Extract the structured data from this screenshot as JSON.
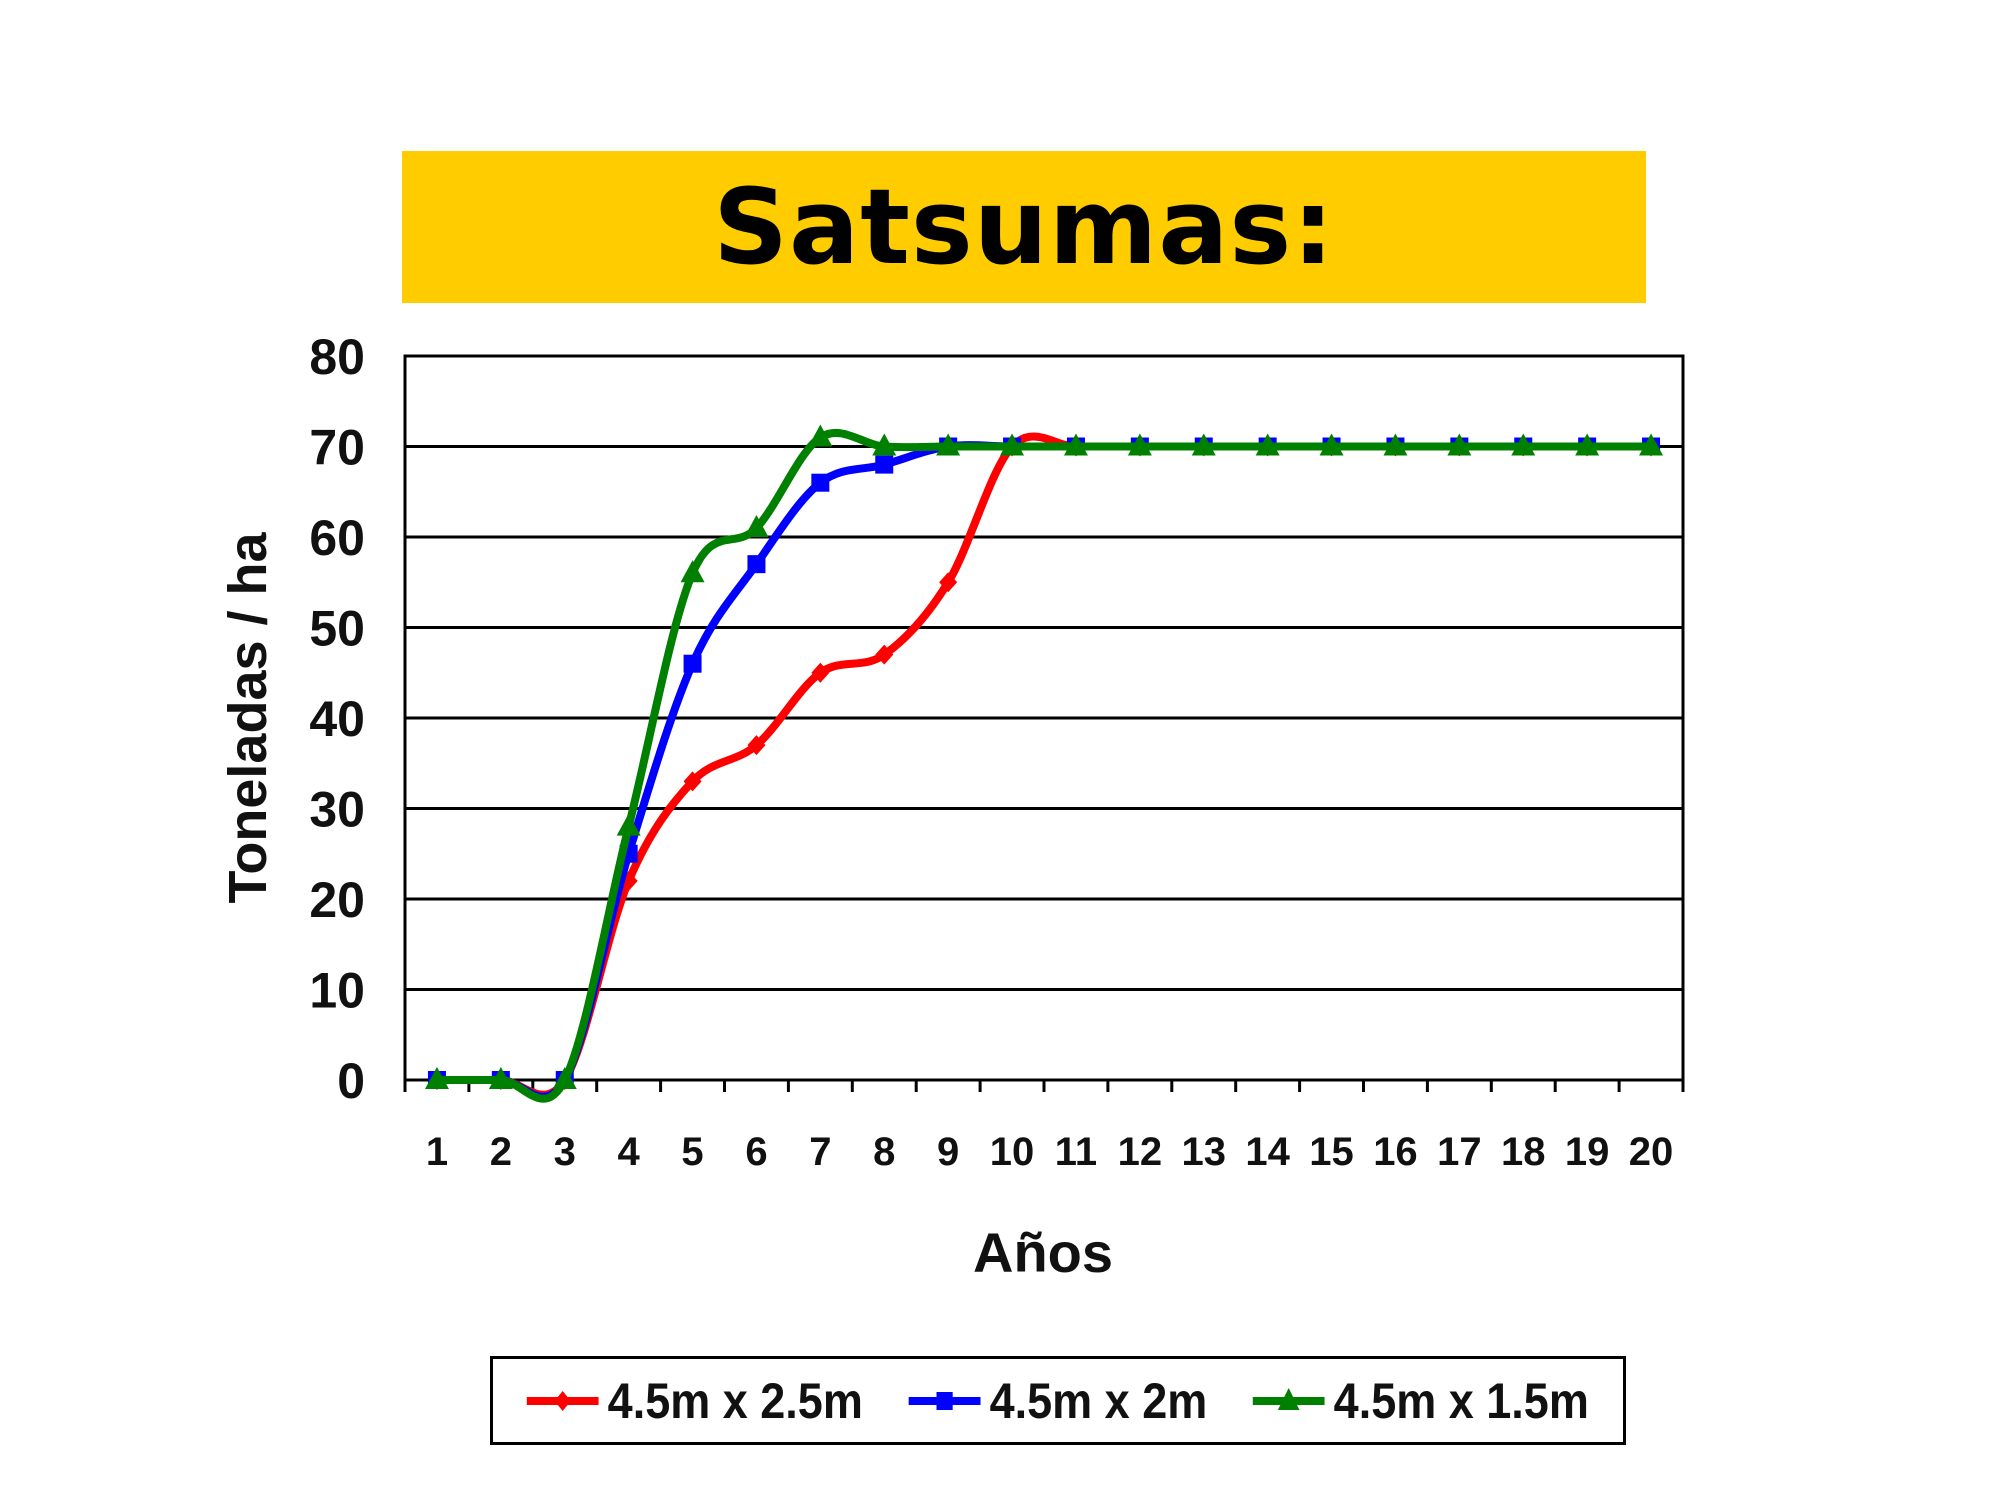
{
  "chart_data": {
    "type": "line",
    "title": "Satsumas:",
    "xlabel": "Años",
    "ylabel": "Toneladas / ha",
    "categories": [
      "1",
      "2",
      "3",
      "4",
      "5",
      "6",
      "7",
      "8",
      "9",
      "10",
      "11",
      "12",
      "13",
      "14",
      "15",
      "16",
      "17",
      "18",
      "19",
      "20"
    ],
    "ylim": [
      0,
      80
    ],
    "yticks": [
      0,
      10,
      20,
      30,
      40,
      50,
      60,
      70,
      80
    ],
    "grid": true,
    "legend_position": "bottom",
    "series": [
      {
        "name": "4.5m x 2.5m",
        "color": "#FF0000",
        "marker": "diamond",
        "values": [
          0,
          0,
          0,
          22,
          33,
          37,
          45,
          47,
          55,
          70,
          70,
          70,
          70,
          70,
          70,
          70,
          70,
          70,
          70,
          70
        ]
      },
      {
        "name": "4.5m x 2m",
        "color": "#0000FF",
        "marker": "square",
        "values": [
          0,
          0,
          0,
          25,
          46,
          57,
          66,
          68,
          70,
          70,
          70,
          70,
          70,
          70,
          70,
          70,
          70,
          70,
          70,
          70
        ]
      },
      {
        "name": "4.5m x 1.5m",
        "color": "#008000",
        "marker": "triangle",
        "values": [
          0,
          0,
          0,
          28,
          56,
          61,
          71,
          70,
          70,
          70,
          70,
          70,
          70,
          70,
          70,
          70,
          70,
          70,
          70,
          70
        ]
      }
    ]
  },
  "colors": {
    "title_background": "#FFCC00"
  }
}
